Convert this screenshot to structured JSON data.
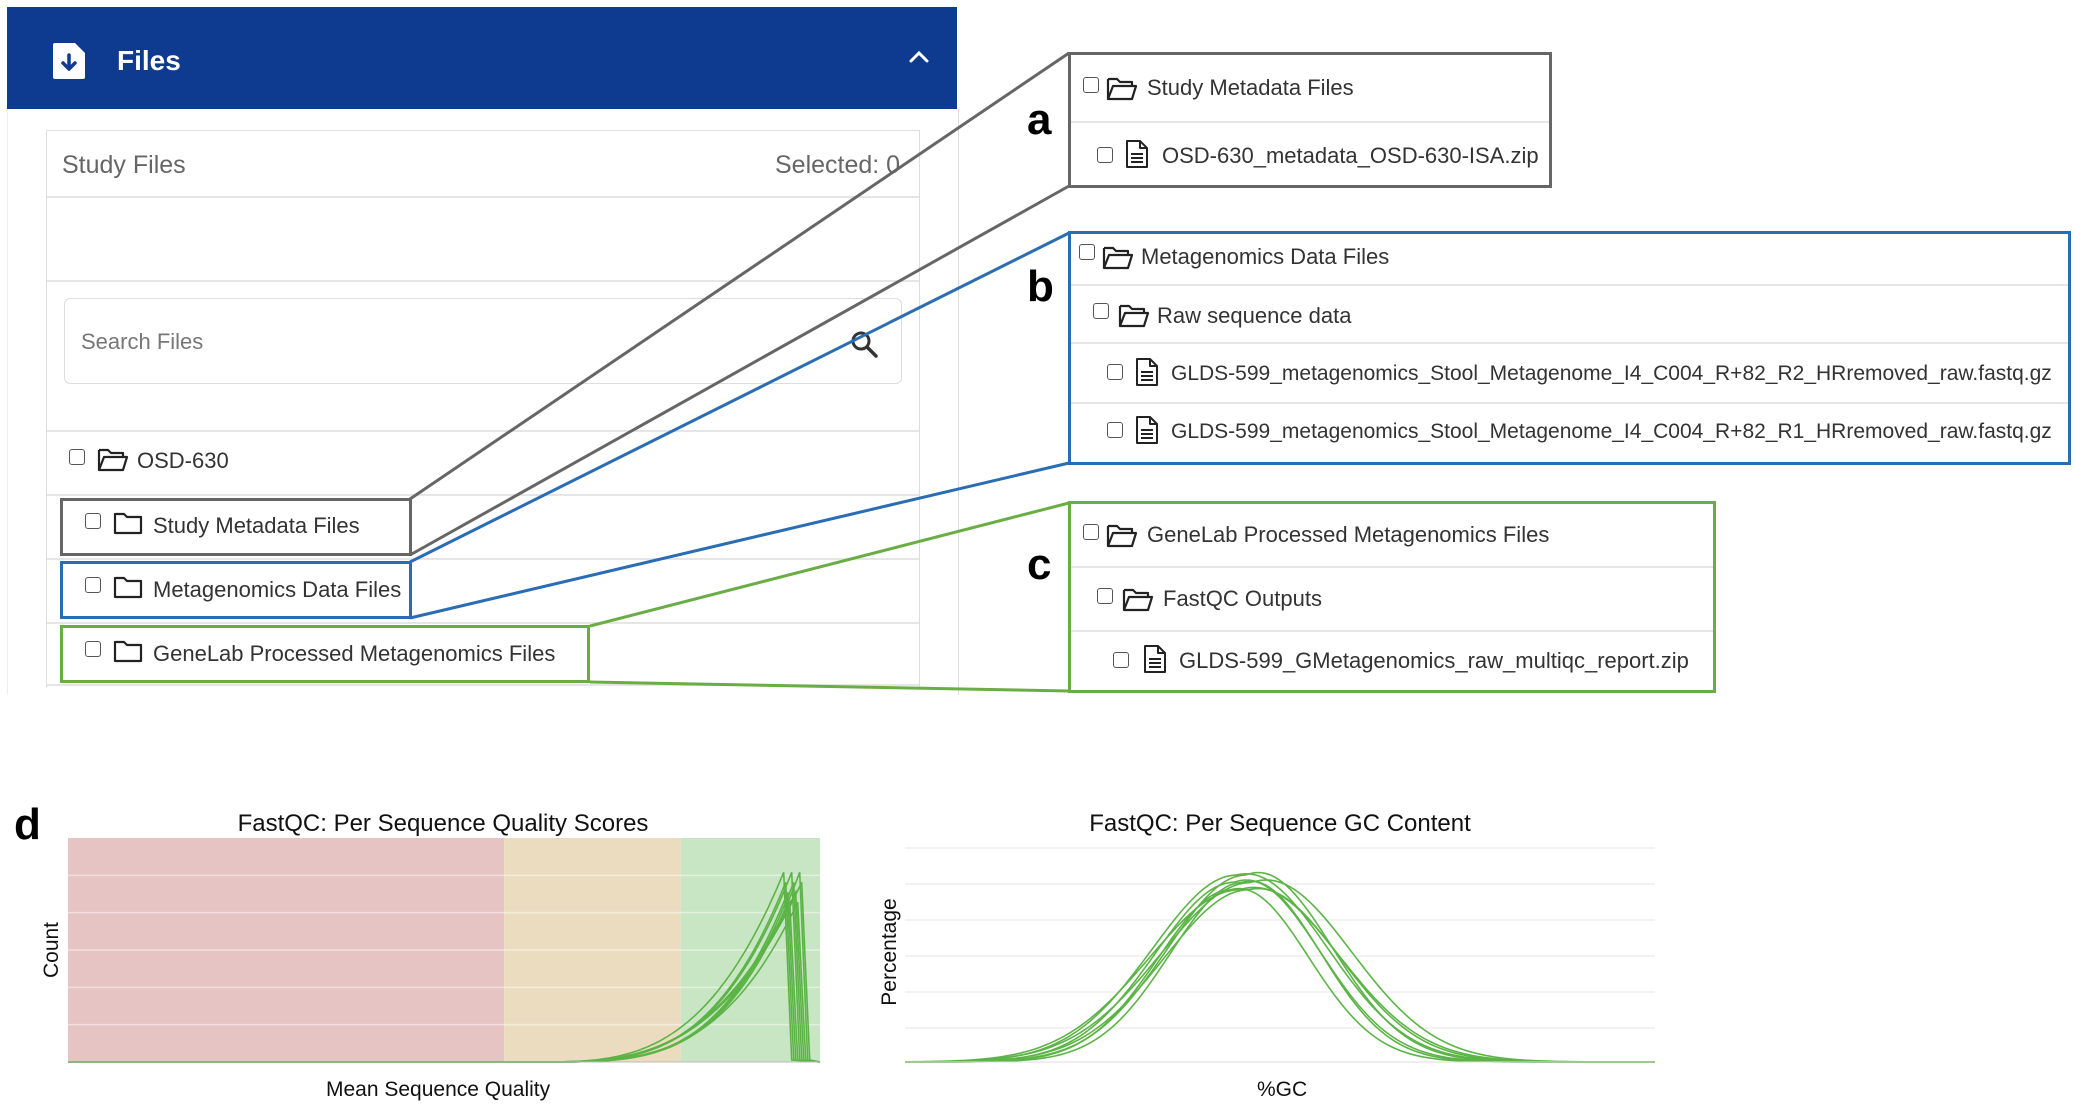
{
  "files_panel": {
    "title": "Files",
    "study_files_label": "Study Files",
    "selected_label": "Selected: 0",
    "search_placeholder": "Search Files",
    "root": "OSD-630",
    "folders": [
      "Study Metadata Files",
      "Metagenomics Data Files",
      "GeneLab Processed Metagenomics Files"
    ]
  },
  "panel_a": {
    "letter": "a",
    "folder": "Study Metadata Files",
    "file": "OSD-630_metadata_OSD-630-ISA.zip"
  },
  "panel_b": {
    "letter": "b",
    "folder": "Metagenomics Data Files",
    "subfolder": "Raw sequence data",
    "files": [
      "GLDS-599_metagenomics_Stool_Metagenome_I4_C004_R+82_R2_HRremoved_raw.fastq.gz",
      "GLDS-599_metagenomics_Stool_Metagenome_I4_C004_R+82_R1_HRremoved_raw.fastq.gz"
    ]
  },
  "panel_c": {
    "letter": "c",
    "folder": "GeneLab Processed Metagenomics Files",
    "subfolder": "FastQC Outputs",
    "file": "GLDS-599_GMetagenomics_raw_multiqc_report.zip"
  },
  "panel_d": {
    "letter": "d"
  },
  "colors": {
    "header_bg": "#0e3b8f",
    "highlight_a": "#666666",
    "highlight_b": "#2a6db4",
    "highlight_c": "#6aad44",
    "line_green": "#5cb447",
    "zone_fail": "#e6c4c4",
    "zone_warn": "#ebdcc0",
    "zone_pass": "#c8e6c4"
  },
  "chart_data": [
    {
      "type": "line",
      "title": "FastQC: Per Sequence Quality Scores",
      "xlabel": "Mean Sequence Quality",
      "ylabel": "Count",
      "zones": [
        {
          "name": "fail",
          "to": 0.58
        },
        {
          "name": "warn",
          "to": 0.815
        },
        {
          "name": "pass",
          "to": 1.0
        }
      ],
      "series_count": 10,
      "peak_x": 0.965,
      "peak_y": 0.78
    },
    {
      "type": "line",
      "title": "FastQC: Per Sequence GC Content",
      "xlabel": "%GC",
      "ylabel": "Percentage",
      "series_count": 8,
      "peak_x": 0.45,
      "peak_y": 0.85
    }
  ]
}
